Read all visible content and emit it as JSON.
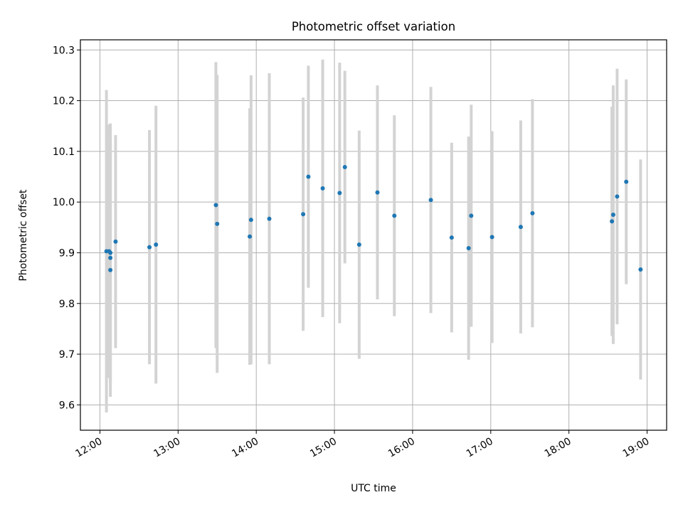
{
  "chart_data": {
    "type": "scatter",
    "title": "Photometric offset variation",
    "xlabel": "UTC time",
    "ylabel": "Photometric offset",
    "x_ticks": [
      "12:00",
      "13:00",
      "14:00",
      "15:00",
      "16:00",
      "17:00",
      "18:00",
      "19:00"
    ],
    "y_ticks": [
      "9.6",
      "9.7",
      "9.8",
      "9.9",
      "10.0",
      "10.1",
      "10.2",
      "10.3"
    ],
    "xlim": [
      "11:45",
      "19:15"
    ],
    "ylim": [
      9.55,
      10.32
    ],
    "grid": true,
    "marker_color": "#1f77b4",
    "errorbar_color": "#d3d3d3",
    "points": [
      {
        "time": "12:05",
        "y": 9.903,
        "err": 0.318
      },
      {
        "time": "12:07",
        "y": 9.903,
        "err": 0.25
      },
      {
        "time": "12:08",
        "y": 9.9,
        "err": 0.255
      },
      {
        "time": "12:08",
        "y": 9.866,
        "err": 0.25
      },
      {
        "time": "12:08",
        "y": 9.89,
        "err": 0.245
      },
      {
        "time": "12:12",
        "y": 9.922,
        "err": 0.21
      },
      {
        "time": "12:38",
        "y": 9.911,
        "err": 0.231
      },
      {
        "time": "12:43",
        "y": 9.916,
        "err": 0.274
      },
      {
        "time": "13:29",
        "y": 9.994,
        "err": 0.282
      },
      {
        "time": "13:30",
        "y": 9.957,
        "err": 0.294
      },
      {
        "time": "13:55",
        "y": 9.932,
        "err": 0.253
      },
      {
        "time": "13:56",
        "y": 9.965,
        "err": 0.285
      },
      {
        "time": "14:10",
        "y": 9.967,
        "err": 0.287
      },
      {
        "time": "14:36",
        "y": 9.976,
        "err": 0.23
      },
      {
        "time": "14:40",
        "y": 10.05,
        "err": 0.219
      },
      {
        "time": "14:51",
        "y": 10.027,
        "err": 0.254
      },
      {
        "time": "15:04",
        "y": 10.018,
        "err": 0.257
      },
      {
        "time": "15:08",
        "y": 10.069,
        "err": 0.19
      },
      {
        "time": "15:19",
        "y": 9.916,
        "err": 0.225
      },
      {
        "time": "15:33",
        "y": 10.019,
        "err": 0.211
      },
      {
        "time": "15:46",
        "y": 9.973,
        "err": 0.198
      },
      {
        "time": "16:14",
        "y": 10.004,
        "err": 0.223
      },
      {
        "time": "16:30",
        "y": 9.93,
        "err": 0.187
      },
      {
        "time": "16:43",
        "y": 9.909,
        "err": 0.22
      },
      {
        "time": "16:45",
        "y": 9.973,
        "err": 0.219
      },
      {
        "time": "17:01",
        "y": 9.931,
        "err": 0.209
      },
      {
        "time": "17:23",
        "y": 9.951,
        "err": 0.21
      },
      {
        "time": "17:32",
        "y": 9.978,
        "err": 0.225
      },
      {
        "time": "18:33",
        "y": 9.962,
        "err": 0.226
      },
      {
        "time": "18:34",
        "y": 9.975,
        "err": 0.255
      },
      {
        "time": "18:37",
        "y": 10.011,
        "err": 0.252
      },
      {
        "time": "18:44",
        "y": 10.04,
        "err": 0.202
      },
      {
        "time": "18:55",
        "y": 9.867,
        "err": 0.217
      }
    ]
  }
}
